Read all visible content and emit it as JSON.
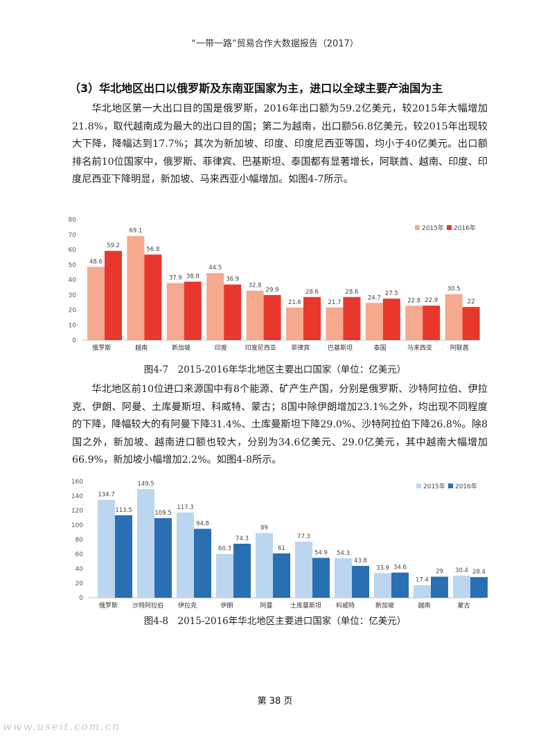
{
  "header": {
    "title": "“一带一路”贸易合作大数据报告（2017）"
  },
  "section": {
    "title": "（3）华北地区出口以俄罗斯及东南亚国家为主，进口以全球主要产油国为主"
  },
  "paragraphs": {
    "p1": "华北地区第一大出口目的国是俄罗斯，2016年出口额为59.2亿美元，较2015年大幅增加21.8%，取代越南成为最大的出口目的国；第二为越南，出口额56.8亿美元，较2015年出现较大下降，降幅达到17.7%；其次为新加坡、印度、印度尼西亚等国，均小于40亿美元。出口额排名前10位国家中，俄罗斯、菲律宾、巴基斯坦、泰国都有显著增长，阿联酋、越南、印度、印度尼西亚下降明显，新加坡、马来西亚小幅增加。如图4-7所示。",
    "p2": "华北地区前10位进口来源国中有8个能源、矿产生产国，分别是俄罗斯、沙特阿拉伯、伊拉克、伊朗、阿曼、土库曼斯坦、科威特、蒙古；8国中除伊朗增加23.1%之外，均出现不同程度的下降，降幅较大的有阿曼下降31.4%、土库曼斯坦下降29.0%、沙特阿拉伯下降26.8%。除8国之外，新加坡、越南进口额也较大，分别为34.6亿美元、29.0亿美元，其中越南大幅增加66.9%，新加坡小幅增加2.2%。如图4-8所示。"
  },
  "captions": {
    "fig1": "图4-7　2015-2016年华北地区主要出口国家（单位：亿美元）",
    "fig2": "图4-8　2015-2016年华北地区主要进口国家（单位：亿美元）"
  },
  "footer": {
    "page": "第 38 页"
  },
  "watermark": "www.useit.com.cn",
  "chart_data": [
    {
      "type": "bar",
      "categories": [
        "俄罗斯",
        "越南",
        "新加坡",
        "印度",
        "印度尼西亚",
        "菲律宾",
        "巴基斯坦",
        "泰国",
        "马来西亚",
        "阿联酋"
      ],
      "series": [
        {
          "name": "2015年",
          "color": "#f5a98f",
          "values": [
            48.6,
            69.1,
            37.9,
            44.5,
            32.8,
            21.6,
            21.7,
            24.7,
            22.8,
            30.5
          ]
        },
        {
          "name": "2016年",
          "color": "#e8372d",
          "values": [
            59.2,
            56.8,
            38.8,
            36.9,
            29.9,
            28.6,
            28.6,
            27.5,
            22.9,
            22.0
          ]
        }
      ],
      "ylim": [
        0,
        80
      ],
      "yticks": [
        0,
        10,
        20,
        30,
        40,
        50,
        60,
        70,
        80
      ],
      "grid": false,
      "legend": "top-right",
      "data_labels": true
    },
    {
      "type": "bar",
      "categories": [
        "俄罗斯",
        "沙特阿拉伯",
        "伊拉克",
        "伊朗",
        "阿曼",
        "土库曼斯坦",
        "科威特",
        "新加坡",
        "越南",
        "蒙古"
      ],
      "series": [
        {
          "name": "2015年",
          "color": "#bcd6ef",
          "values": [
            134.7,
            149.5,
            117.3,
            60.3,
            89.0,
            77.3,
            54.3,
            33.9,
            17.4,
            30.4
          ]
        },
        {
          "name": "2016年",
          "color": "#2a6fb2",
          "values": [
            113.5,
            109.5,
            94.8,
            74.3,
            61.0,
            54.9,
            43.8,
            34.6,
            29.0,
            28.4
          ]
        }
      ],
      "ylim": [
        0,
        160
      ],
      "yticks": [
        0,
        20,
        40,
        60,
        80,
        100,
        120,
        140,
        160
      ],
      "grid": false,
      "legend": "top-right",
      "data_labels": true
    }
  ]
}
